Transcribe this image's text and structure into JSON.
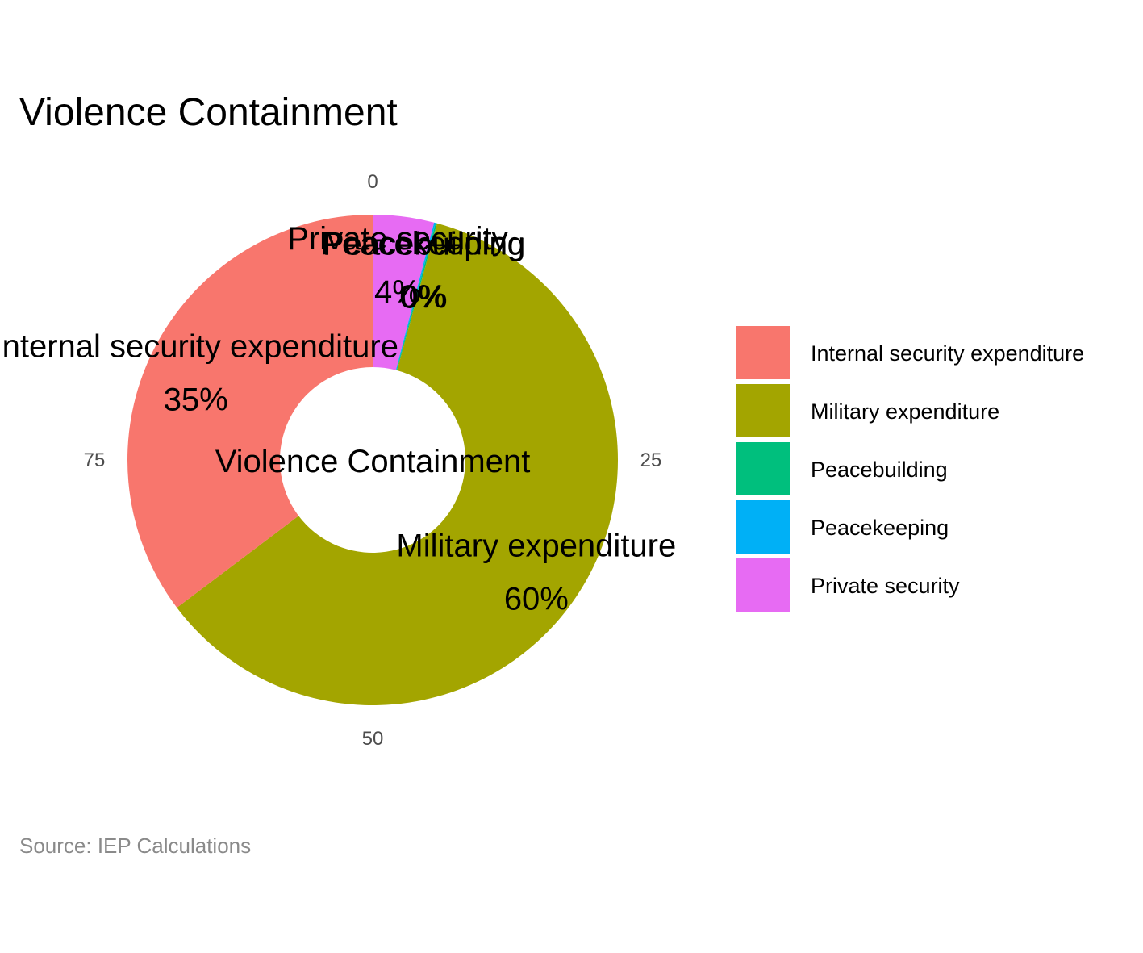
{
  "chart_data": {
    "type": "pie",
    "title": "Violence Containment",
    "center_label": "Violence Containment",
    "caption": "Source: IEP Calculations",
    "legend_position": "right",
    "radial_ticks": [
      {
        "value": 0,
        "label": "0"
      },
      {
        "value": 25,
        "label": "25"
      },
      {
        "value": 50,
        "label": "50"
      },
      {
        "value": 75,
        "label": "75"
      }
    ],
    "slices": [
      {
        "name": "Private security",
        "value": 4,
        "label": "Private security",
        "percent": "4%",
        "color": "#E76BF3"
      },
      {
        "name": "Peacekeeping",
        "value": 0.1,
        "label": "Peacekeeping",
        "percent": "0%",
        "color": "#00B0F6"
      },
      {
        "name": "Peacebuilding",
        "value": 0.1,
        "label": "Peacebuilding",
        "percent": "0%",
        "color": "#00BF7D"
      },
      {
        "name": "Military expenditure",
        "value": 60,
        "label": "Military expenditure",
        "percent": "60%",
        "color": "#A3A500"
      },
      {
        "name": "Internal security expenditure",
        "value": 35,
        "label": "Internal security expenditure",
        "percent": "35%",
        "color": "#F8766D"
      }
    ],
    "legend": [
      {
        "label": "Internal security expenditure",
        "color": "#F8766D"
      },
      {
        "label": "Military expenditure",
        "color": "#A3A500"
      },
      {
        "label": "Peacebuilding",
        "color": "#00BF7D"
      },
      {
        "label": "Peacekeeping",
        "color": "#00B0F6"
      },
      {
        "label": "Private security",
        "color": "#E76BF3"
      }
    ]
  }
}
